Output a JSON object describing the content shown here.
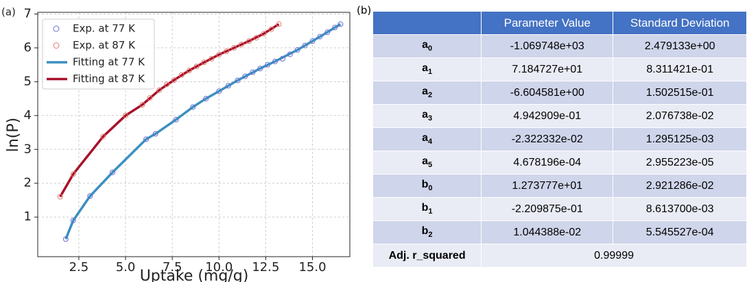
{
  "chart_data": {
    "type": "line",
    "panel_label": "(a)",
    "x_label": "Uptake (mg/g)",
    "y_label": "ln(P)",
    "xlim": [
      0.3,
      17.0
    ],
    "ylim": [
      -0.17,
      7.05
    ],
    "xticks": [
      2.5,
      {
        "value": 5,
        "label": "5.0"
      },
      7.5,
      {
        "value": 10,
        "label": "10.0"
      },
      12.5,
      {
        "value": 15,
        "label": "15.0"
      }
    ],
    "yticks": [
      1,
      2,
      3,
      4,
      5,
      6,
      7
    ],
    "grid": true,
    "legend": "upper left",
    "series": [
      {
        "name": "Exp. at 77 K",
        "style": "markers",
        "color": "#6a6fd0",
        "x": [
          1.8,
          2.2,
          3.1,
          4.3,
          6.1,
          6.6,
          7.7,
          8.6,
          9.3,
          10.0,
          10.5,
          11.0,
          11.4,
          11.8,
          12.2,
          12.6,
          13.0,
          13.4,
          13.8,
          14.2,
          14.6,
          15.0,
          15.4,
          15.8,
          16.2,
          16.5
        ],
        "values": [
          0.35,
          0.9,
          1.62,
          2.32,
          3.3,
          3.46,
          3.88,
          4.25,
          4.5,
          4.72,
          4.88,
          5.04,
          5.16,
          5.28,
          5.39,
          5.5,
          5.6,
          5.68,
          5.81,
          5.94,
          6.07,
          6.2,
          6.33,
          6.46,
          6.6,
          6.7
        ]
      },
      {
        "name": "Exp. at 87 K",
        "style": "markers",
        "color": "#e07b6a",
        "x": [
          1.5,
          2.2,
          3.8,
          5.0,
          5.9,
          6.3,
          6.8,
          7.2,
          7.6,
          8.0,
          8.4,
          8.8,
          9.2,
          9.6,
          10.0,
          10.4,
          10.8,
          11.2,
          11.6,
          12.0,
          12.4,
          12.8,
          13.2
        ],
        "values": [
          1.6,
          2.27,
          3.38,
          4.0,
          4.32,
          4.52,
          4.75,
          4.92,
          5.05,
          5.2,
          5.33,
          5.45,
          5.57,
          5.68,
          5.8,
          5.9,
          6.0,
          6.1,
          6.2,
          6.3,
          6.42,
          6.55,
          6.7
        ]
      },
      {
        "name": "Fitting at 77 K",
        "style": "line",
        "color": "#3b8fc0",
        "x": [
          1.8,
          2.2,
          3.1,
          4.3,
          6.1,
          6.6,
          7.7,
          8.6,
          9.3,
          10.0,
          11.0,
          12.2,
          13.0,
          14.2,
          15.4,
          16.5
        ],
        "values": [
          0.35,
          0.9,
          1.62,
          2.32,
          3.3,
          3.46,
          3.88,
          4.25,
          4.5,
          4.72,
          5.04,
          5.39,
          5.6,
          5.94,
          6.33,
          6.7
        ]
      },
      {
        "name": "Fitting at 87 K",
        "style": "line",
        "color": "#a8102a",
        "x": [
          1.5,
          2.2,
          3.8,
          5.0,
          5.9,
          6.8,
          7.6,
          8.4,
          9.2,
          10.0,
          10.8,
          11.6,
          12.4,
          13.2
        ],
        "values": [
          1.6,
          2.27,
          3.38,
          4.0,
          4.32,
          4.75,
          5.05,
          5.33,
          5.57,
          5.8,
          6.0,
          6.2,
          6.42,
          6.7
        ]
      }
    ]
  },
  "table": {
    "panel_label": "(b)",
    "header": [
      "Parameter Value",
      "Standard Deviation"
    ],
    "rows": [
      {
        "name": {
          "base": "a",
          "sub": "0"
        },
        "cells": [
          "-1.069748e+03",
          "2.479133e+00"
        ]
      },
      {
        "name": {
          "base": "a",
          "sub": "1"
        },
        "cells": [
          "7.184727e+01",
          "8.311421e-01"
        ]
      },
      {
        "name": {
          "base": "a",
          "sub": "2"
        },
        "cells": [
          "-6.604581e+00",
          "1.502515e-01"
        ]
      },
      {
        "name": {
          "base": "a",
          "sub": "3"
        },
        "cells": [
          "4.942909e-01",
          "2.076738e-02"
        ]
      },
      {
        "name": {
          "base": "a",
          "sub": "4"
        },
        "cells": [
          "-2.322332e-02",
          "1.295125e-03"
        ]
      },
      {
        "name": {
          "base": "a",
          "sub": "5"
        },
        "cells": [
          "4.678196e-04",
          "2.955223e-05"
        ]
      },
      {
        "name": {
          "base": "b",
          "sub": "0"
        },
        "cells": [
          "1.273777e+01",
          "2.921286e-02"
        ]
      },
      {
        "name": {
          "base": "b",
          "sub": "1"
        },
        "cells": [
          "-2.209875e-01",
          "8.613700e-03"
        ]
      },
      {
        "name": {
          "base": "b",
          "sub": "2"
        },
        "cells": [
          "1.044388e-02",
          "5.545527e-04"
        ]
      }
    ],
    "footer": {
      "name": "Adj. r_squared",
      "value": "0.99999"
    }
  }
}
